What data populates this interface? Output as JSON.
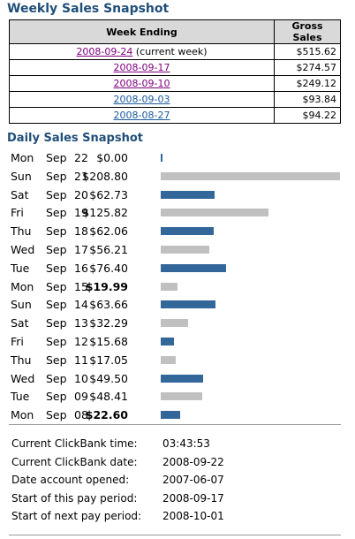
{
  "weekly": {
    "title": "Weekly Sales Snapshot",
    "headers": {
      "week": "Week Ending",
      "gross": "Gross Sales"
    },
    "rows": [
      {
        "date": "2008-09-24",
        "note": "(current week)",
        "amount": "$515.62",
        "visited": true
      },
      {
        "date": "2008-09-17",
        "note": "",
        "amount": "$274.57",
        "visited": true
      },
      {
        "date": "2008-09-10",
        "note": "",
        "amount": "$249.12",
        "visited": true
      },
      {
        "date": "2008-09-03",
        "note": "",
        "amount": "$93.84",
        "visited": false
      },
      {
        "date": "2008-08-27",
        "note": "",
        "amount": "$94.22",
        "visited": false
      }
    ]
  },
  "daily": {
    "title": "Daily Sales Snapshot",
    "max_value": 208.8,
    "colors": {
      "gray": "#c0c0c0",
      "blue": "#336699"
    },
    "rows": [
      {
        "dow": "Mon",
        "month": "Sep",
        "day": "22",
        "amount": "$0.00",
        "value": 0.0,
        "color": "blue",
        "bold": false
      },
      {
        "dow": "Sun",
        "month": "Sep",
        "day": "21",
        "amount": "$208.80",
        "value": 208.8,
        "color": "gray",
        "bold": false
      },
      {
        "dow": "Sat",
        "month": "Sep",
        "day": "20",
        "amount": "$62.73",
        "value": 62.73,
        "color": "blue",
        "bold": false
      },
      {
        "dow": "Fri",
        "month": "Sep",
        "day": "19",
        "amount": "$125.82",
        "value": 125.82,
        "color": "gray",
        "bold": false
      },
      {
        "dow": "Thu",
        "month": "Sep",
        "day": "18",
        "amount": "$62.06",
        "value": 62.06,
        "color": "blue",
        "bold": false
      },
      {
        "dow": "Wed",
        "month": "Sep",
        "day": "17",
        "amount": "$56.21",
        "value": 56.21,
        "color": "gray",
        "bold": false
      },
      {
        "dow": "Tue",
        "month": "Sep",
        "day": "16",
        "amount": "$76.40",
        "value": 76.4,
        "color": "blue",
        "bold": false
      },
      {
        "dow": "Mon",
        "month": "Sep",
        "day": "15",
        "amount": "$19.99",
        "value": 19.99,
        "color": "gray",
        "bold": true
      },
      {
        "dow": "Sun",
        "month": "Sep",
        "day": "14",
        "amount": "$63.66",
        "value": 63.66,
        "color": "blue",
        "bold": false
      },
      {
        "dow": "Sat",
        "month": "Sep",
        "day": "13",
        "amount": "$32.29",
        "value": 32.29,
        "color": "gray",
        "bold": false
      },
      {
        "dow": "Fri",
        "month": "Sep",
        "day": "12",
        "amount": "$15.68",
        "value": 15.68,
        "color": "blue",
        "bold": false
      },
      {
        "dow": "Thu",
        "month": "Sep",
        "day": "11",
        "amount": "$17.05",
        "value": 17.05,
        "color": "gray",
        "bold": false
      },
      {
        "dow": "Wed",
        "month": "Sep",
        "day": "10",
        "amount": "$49.50",
        "value": 49.5,
        "color": "blue",
        "bold": false
      },
      {
        "dow": "Tue",
        "month": "Sep",
        "day": "09",
        "amount": "$48.41",
        "value": 48.41,
        "color": "gray",
        "bold": false
      },
      {
        "dow": "Mon",
        "month": "Sep",
        "day": "08",
        "amount": "$22.60",
        "value": 22.6,
        "color": "blue",
        "bold": true
      }
    ]
  },
  "info": {
    "rows": [
      {
        "label": "Current ClickBank time:",
        "value": "03:43:53"
      },
      {
        "label": "Current ClickBank date:",
        "value": "2008-09-22"
      },
      {
        "label": "Date account opened:",
        "value": "2007-06-07"
      },
      {
        "label": "Start of this pay period:",
        "value": "2008-09-17"
      },
      {
        "label": "Start of next pay period:",
        "value": "2008-10-01"
      }
    ]
  }
}
